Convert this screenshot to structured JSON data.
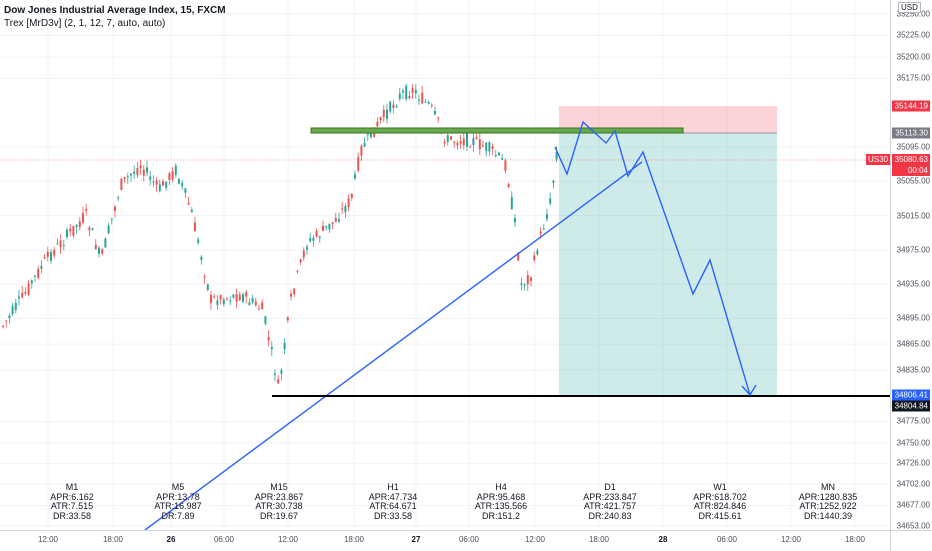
{
  "legend": {
    "title": "Dow Jones Industrial Average Index, 15, FXCM",
    "indicator": "Trex [MrD3v] (2, 1, 12, 7, auto, auto)"
  },
  "price_axis": {
    "currency": "USD",
    "ticks": [
      "35250.00",
      "35225.00",
      "35200.00",
      "35175.00",
      "35144.19",
      "35113.30",
      "35095.00",
      "35080.63",
      "35055.00",
      "35015.00",
      "34975.00",
      "34935.00",
      "34895.00",
      "34865.00",
      "34835.00",
      "34806.41",
      "34804.84",
      "34775.00",
      "34750.00",
      "34726.00",
      "34702.00",
      "34677.00",
      "34653.00"
    ],
    "plain_ticks": [
      {
        "v": "35250.00",
        "p": 35250
      },
      {
        "v": "35225.00",
        "p": 35225
      },
      {
        "v": "35200.00",
        "p": 35200
      },
      {
        "v": "35175.00",
        "p": 35175
      },
      {
        "v": "35095.00",
        "p": 35095
      },
      {
        "v": "35055.00",
        "p": 35055
      },
      {
        "v": "35015.00",
        "p": 35015
      },
      {
        "v": "34975.00",
        "p": 34975
      },
      {
        "v": "34935.00",
        "p": 34935
      },
      {
        "v": "34895.00",
        "p": 34895
      },
      {
        "v": "34865.00",
        "p": 34865
      },
      {
        "v": "34835.00",
        "p": 34835
      },
      {
        "v": "34775.00",
        "p": 34775
      },
      {
        "v": "34750.00",
        "p": 34750
      },
      {
        "v": "34726.00",
        "p": 34726
      },
      {
        "v": "34702.00",
        "p": 34702
      },
      {
        "v": "34677.00",
        "p": 34677
      },
      {
        "v": "34653.00",
        "p": 34653
      }
    ],
    "stop_label": "35144.19",
    "entry_label": "35113.30",
    "current_price": "35080.63",
    "countdown": "00:04",
    "symbol_tag": "US30",
    "target_label": "34806.41",
    "support_label": "34804.84",
    "colors": {
      "stop": "#f23645",
      "entry": "#787b86",
      "current": "#f23645",
      "target": "#2962ff",
      "support": "#131722"
    }
  },
  "time_axis": {
    "labels": [
      {
        "t": "12:00",
        "bold": false
      },
      {
        "t": "18:00",
        "bold": false
      },
      {
        "t": "26",
        "bold": true
      },
      {
        "t": "06:00",
        "bold": false
      },
      {
        "t": "12:00",
        "bold": false
      },
      {
        "t": "18:00",
        "bold": false
      },
      {
        "t": "27",
        "bold": true
      },
      {
        "t": "06:00",
        "bold": false
      },
      {
        "t": "12:00",
        "bold": false
      },
      {
        "t": "18:00",
        "bold": false
      },
      {
        "t": "28",
        "bold": true
      },
      {
        "t": "06:00",
        "bold": false
      },
      {
        "t": "12:00",
        "bold": false
      },
      {
        "t": "18:00",
        "bold": false
      }
    ]
  },
  "stats": [
    {
      "tf": "M1",
      "apr": "APR:6.162",
      "atr": "ATR:7.515",
      "dr": "DR:33.58"
    },
    {
      "tf": "M5",
      "apr": "APR:13.78",
      "atr": "ATR:16.987",
      "dr": "DR:7.89"
    },
    {
      "tf": "M15",
      "apr": "APR:23.867",
      "atr": "ATR:30.738",
      "dr": "DR:19.67"
    },
    {
      "tf": "H1",
      "apr": "APR:47.734",
      "atr": "ATR:64.671",
      "dr": "DR:33.58"
    },
    {
      "tf": "H4",
      "apr": "APR:95.468",
      "atr": "ATR:135.566",
      "dr": "DR:151.2"
    },
    {
      "tf": "D1",
      "apr": "APR:233.847",
      "atr": "ATR:421.757",
      "dr": "DR:240.83"
    },
    {
      "tf": "W1",
      "apr": "APR:618.702",
      "atr": "ATR:824.846",
      "dr": "DR:415.61"
    },
    {
      "tf": "MN",
      "apr": "APR:1280.835",
      "atr": "ATR:1252.922",
      "dr": "DR:1440.39"
    }
  ],
  "colors": {
    "up": "#26a69a",
    "down": "#ef5350",
    "drawing": "#2962ff",
    "zone": "#4caf50"
  }
}
